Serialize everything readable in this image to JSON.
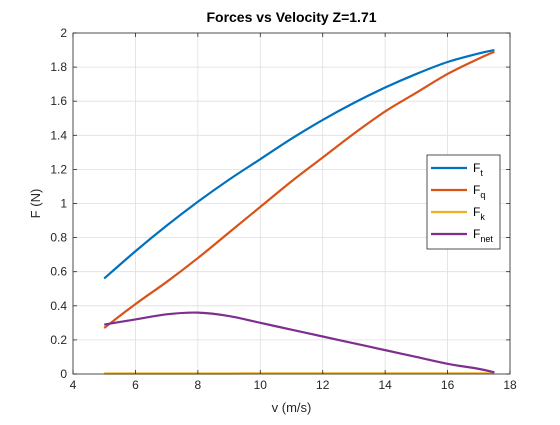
{
  "chart_data": {
    "type": "line",
    "title": "Forces vs Velocity Z=1.71",
    "xlabel": "v (m/s)",
    "ylabel": "F (N)",
    "xlim": [
      4,
      18
    ],
    "ylim": [
      0,
      2
    ],
    "xticks": [
      4,
      6,
      8,
      10,
      12,
      14,
      16,
      18
    ],
    "yticks": [
      0,
      0.2,
      0.4,
      0.6,
      0.8,
      1,
      1.2,
      1.4,
      1.6,
      1.8,
      2
    ],
    "grid": true,
    "legend_position": "right",
    "x": [
      5,
      6,
      7,
      8,
      9,
      10,
      11,
      12,
      13,
      14,
      15,
      16,
      17,
      17.5
    ],
    "series": [
      {
        "name": "F",
        "sub": "t",
        "color": "#0072BD",
        "values": [
          0.56,
          0.72,
          0.87,
          1.01,
          1.14,
          1.26,
          1.38,
          1.49,
          1.59,
          1.68,
          1.76,
          1.83,
          1.88,
          1.9
        ]
      },
      {
        "name": "F",
        "sub": "q",
        "color": "#D95319",
        "values": [
          0.27,
          0.41,
          0.54,
          0.68,
          0.83,
          0.98,
          1.13,
          1.27,
          1.41,
          1.54,
          1.65,
          1.76,
          1.85,
          1.89
        ]
      },
      {
        "name": "F",
        "sub": "k",
        "color": "#EDB120",
        "values": [
          0.003,
          0.003,
          0.003,
          0.003,
          0.003,
          0.004,
          0.004,
          0.004,
          0.004,
          0.004,
          0.004,
          0.004,
          0.004,
          0.004
        ]
      },
      {
        "name": "F",
        "sub": "net",
        "color": "#7E2F8E",
        "values": [
          0.29,
          0.32,
          0.35,
          0.36,
          0.34,
          0.3,
          0.26,
          0.22,
          0.18,
          0.14,
          0.1,
          0.06,
          0.03,
          0.01
        ]
      }
    ]
  }
}
